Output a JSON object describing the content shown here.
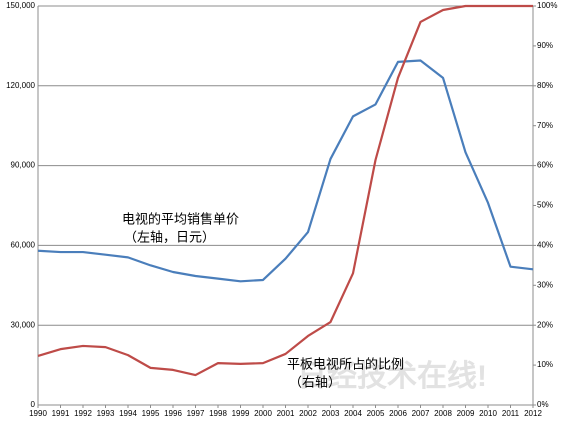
{
  "chart_data": {
    "type": "line",
    "x": [
      1990,
      1991,
      1992,
      1993,
      1994,
      1995,
      1996,
      1997,
      1998,
      1999,
      2000,
      2001,
      2002,
      2003,
      2004,
      2005,
      2006,
      2007,
      2008,
      2009,
      2010,
      2011,
      2012
    ],
    "xlim": [
      1990,
      2012
    ],
    "series": [
      {
        "name": "电视的平均销售单价",
        "color": "#4a7ebb",
        "axis": "y",
        "values": [
          58000,
          57500,
          57500,
          56500,
          55500,
          52500,
          50000,
          48500,
          47500,
          46500,
          47000,
          55000,
          65000,
          92500,
          108500,
          113000,
          129000,
          129500,
          123000,
          95000,
          76000,
          52000,
          51000
        ]
      },
      {
        "name": "平板电视所占的比例",
        "color": "#be4b48",
        "axis": "y2",
        "values": [
          12.3,
          14,
          14.8,
          14.5,
          12.5,
          9.3,
          8.8,
          7.5,
          10.5,
          10.3,
          10.5,
          12.8,
          17.3,
          20.8,
          33,
          61.4,
          82,
          96,
          99,
          100,
          100,
          100,
          100
        ]
      }
    ],
    "annotations": [
      "电视的平均销售单价",
      "（左轴，日元）",
      "平板电视所占的比例",
      "（右轴）",
      "日经技术在线!"
    ],
    "ylim": [
      0,
      150000
    ],
    "yticks": [
      {
        "value": 0,
        "label": "0"
      },
      {
        "value": 30000,
        "label": "30,000"
      },
      {
        "value": 60000,
        "label": "60,000"
      },
      {
        "value": 90000,
        "label": "90,000"
      },
      {
        "value": 120000,
        "label": "120,000"
      },
      {
        "value": 150000,
        "label": "150,000"
      }
    ],
    "y2lim": [
      0,
      100
    ],
    "y2ticks": [
      {
        "value": 0,
        "label": "0%"
      },
      {
        "value": 10,
        "label": "10%"
      },
      {
        "value": 20,
        "label": "20%"
      },
      {
        "value": 30,
        "label": "30%"
      },
      {
        "value": 40,
        "label": "40%"
      },
      {
        "value": 50,
        "label": "50%"
      },
      {
        "value": 60,
        "label": "60%"
      },
      {
        "value": 70,
        "label": "70%"
      },
      {
        "value": 80,
        "label": "80%"
      },
      {
        "value": 90,
        "label": "90%"
      },
      {
        "value": 100,
        "label": "100%"
      }
    ],
    "grid": true
  }
}
